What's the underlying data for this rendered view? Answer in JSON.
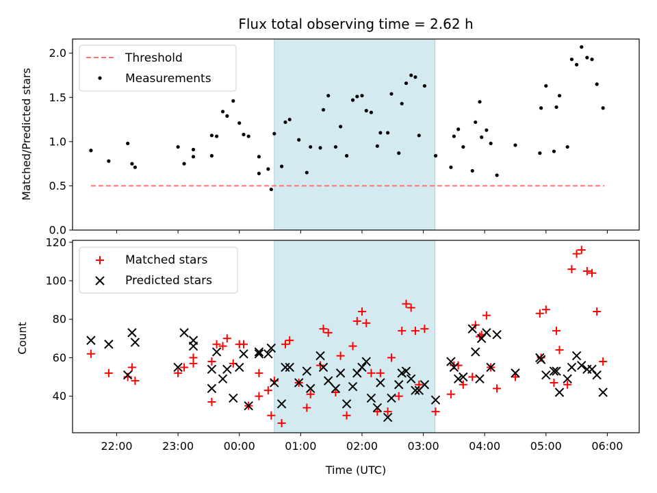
{
  "chart_data": [
    {
      "type": "scatter",
      "title": "Flux total observing time = 2.62 h",
      "ylabel": "Matched/Predicted stars",
      "xlim": [
        -2.72,
        6.52
      ],
      "ylim": [
        0,
        2.16
      ],
      "yticks": [
        "0.0",
        "0.5",
        "1.0",
        "1.5",
        "2.0"
      ],
      "legend": "top-left",
      "grid": false,
      "highlight_span": [
        0.57,
        3.19
      ],
      "highlight_color": "#d3eaf0",
      "series": [
        {
          "name": "Threshold",
          "kind": "dashed-line",
          "color": "#ff7070",
          "points": [
            [
              -2.42,
              0.5
            ],
            [
              5.95,
              0.5
            ]
          ]
        },
        {
          "name": "Measurements",
          "kind": "dot",
          "color": "#000000",
          "points": [
            [
              -2.42,
              0.9
            ],
            [
              -2.13,
              0.78
            ],
            [
              -1.82,
              0.98
            ],
            [
              -1.75,
              0.75
            ],
            [
              -1.7,
              0.71
            ],
            [
              -1.0,
              0.94
            ],
            [
              -0.9,
              0.75
            ],
            [
              -0.75,
              0.83
            ],
            [
              -0.75,
              0.91
            ],
            [
              -0.45,
              0.84
            ],
            [
              -0.45,
              1.07
            ],
            [
              -0.37,
              1.06
            ],
            [
              -0.27,
              1.34
            ],
            [
              -0.2,
              1.29
            ],
            [
              -0.1,
              1.46
            ],
            [
              0.0,
              1.21
            ],
            [
              0.07,
              1.08
            ],
            [
              0.15,
              1.06
            ],
            [
              0.32,
              0.64
            ],
            [
              0.32,
              0.83
            ],
            [
              0.47,
              0.69
            ],
            [
              0.52,
              0.46
            ],
            [
              0.57,
              1.09
            ],
            [
              0.69,
              0.72
            ],
            [
              0.75,
              1.22
            ],
            [
              0.82,
              1.25
            ],
            [
              0.97,
              1.02
            ],
            [
              1.1,
              0.65
            ],
            [
              1.16,
              0.94
            ],
            [
              1.32,
              0.93
            ],
            [
              1.37,
              1.36
            ],
            [
              1.45,
              1.52
            ],
            [
              1.57,
              0.94
            ],
            [
              1.65,
              1.17
            ],
            [
              1.75,
              0.84
            ],
            [
              1.85,
              1.47
            ],
            [
              1.92,
              1.51
            ],
            [
              2.0,
              1.52
            ],
            [
              2.07,
              1.35
            ],
            [
              2.15,
              1.33
            ],
            [
              2.25,
              0.95
            ],
            [
              2.3,
              1.1
            ],
            [
              2.42,
              1.1
            ],
            [
              2.48,
              1.54
            ],
            [
              2.6,
              0.87
            ],
            [
              2.65,
              1.43
            ],
            [
              2.72,
              1.66
            ],
            [
              2.8,
              1.75
            ],
            [
              2.87,
              1.73
            ],
            [
              2.93,
              1.07
            ],
            [
              3.02,
              1.63
            ],
            [
              3.2,
              0.84
            ],
            [
              3.45,
              0.71
            ],
            [
              3.5,
              1.06
            ],
            [
              3.57,
              1.14
            ],
            [
              3.65,
              0.94
            ],
            [
              3.8,
              0.67
            ],
            [
              3.85,
              1.22
            ],
            [
              3.92,
              1.45
            ],
            [
              3.95,
              1.05
            ],
            [
              4.03,
              1.13
            ],
            [
              4.1,
              0.98
            ],
            [
              4.2,
              0.62
            ],
            [
              4.5,
              0.96
            ],
            [
              4.9,
              0.87
            ],
            [
              4.92,
              1.38
            ],
            [
              5.0,
              1.63
            ],
            [
              5.13,
              0.89
            ],
            [
              5.17,
              1.39
            ],
            [
              5.22,
              1.52
            ],
            [
              5.35,
              0.94
            ],
            [
              5.42,
              1.93
            ],
            [
              5.5,
              1.87
            ],
            [
              5.58,
              2.07
            ],
            [
              5.67,
              1.95
            ],
            [
              5.75,
              1.93
            ],
            [
              5.83,
              1.65
            ],
            [
              5.93,
              1.38
            ]
          ]
        }
      ]
    },
    {
      "type": "scatter",
      "xlabel": "Time (UTC)",
      "ylabel": "Count",
      "xlim": [
        -2.72,
        6.52
      ],
      "ylim": [
        21,
        121
      ],
      "yticks": [
        "40",
        "60",
        "80",
        "100",
        "120"
      ],
      "xticks": [
        {
          "label": "22:00",
          "value": -2
        },
        {
          "label": "23:00",
          "value": -1
        },
        {
          "label": "00:00",
          "value": 0
        },
        {
          "label": "01:00",
          "value": 1
        },
        {
          "label": "02:00",
          "value": 2
        },
        {
          "label": "03:00",
          "value": 3
        },
        {
          "label": "04:00",
          "value": 4
        },
        {
          "label": "05:00",
          "value": 5
        },
        {
          "label": "06:00",
          "value": 6
        }
      ],
      "legend": "top-left",
      "grid": false,
      "highlight_span": [
        0.57,
        3.19
      ],
      "highlight_color": "#d3eaf0",
      "series": [
        {
          "name": "Matched stars",
          "kind": "plus",
          "color": "#ff0000",
          "points": [
            [
              -2.42,
              62
            ],
            [
              -2.13,
              52
            ],
            [
              -1.82,
              50
            ],
            [
              -1.75,
              55
            ],
            [
              -1.7,
              48
            ],
            [
              -1.0,
              52
            ],
            [
              -0.9,
              55
            ],
            [
              -0.75,
              57
            ],
            [
              -0.75,
              60
            ],
            [
              -0.45,
              37
            ],
            [
              -0.45,
              58
            ],
            [
              -0.37,
              67
            ],
            [
              -0.27,
              66
            ],
            [
              -0.2,
              70
            ],
            [
              -0.1,
              57
            ],
            [
              0.0,
              67
            ],
            [
              0.07,
              67
            ],
            [
              0.15,
              35
            ],
            [
              0.32,
              40
            ],
            [
              0.32,
              52
            ],
            [
              0.47,
              43
            ],
            [
              0.52,
              30
            ],
            [
              0.57,
              48
            ],
            [
              0.69,
              26
            ],
            [
              0.75,
              67
            ],
            [
              0.82,
              69
            ],
            [
              0.97,
              47
            ],
            [
              1.1,
              34
            ],
            [
              1.16,
              41
            ],
            [
              1.32,
              56
            ],
            [
              1.37,
              75
            ],
            [
              1.45,
              73
            ],
            [
              1.57,
              42
            ],
            [
              1.65,
              61
            ],
            [
              1.75,
              30
            ],
            [
              1.85,
              66
            ],
            [
              1.92,
              79
            ],
            [
              2.0,
              84
            ],
            [
              2.07,
              78
            ],
            [
              2.15,
              52
            ],
            [
              2.25,
              32
            ],
            [
              2.3,
              52
            ],
            [
              2.42,
              32
            ],
            [
              2.48,
              60
            ],
            [
              2.6,
              40
            ],
            [
              2.65,
              74
            ],
            [
              2.72,
              88
            ],
            [
              2.8,
              86
            ],
            [
              2.87,
              74
            ],
            [
              2.93,
              46
            ],
            [
              3.02,
              75
            ],
            [
              3.2,
              32
            ],
            [
              3.45,
              41
            ],
            [
              3.5,
              56
            ],
            [
              3.57,
              56
            ],
            [
              3.65,
              46
            ],
            [
              3.8,
              50
            ],
            [
              3.85,
              77
            ],
            [
              3.92,
              71
            ],
            [
              3.95,
              72
            ],
            [
              4.03,
              82
            ],
            [
              4.1,
              55
            ],
            [
              4.2,
              44
            ],
            [
              4.5,
              50
            ],
            [
              4.9,
              83
            ],
            [
              4.92,
              60
            ],
            [
              5.0,
              85
            ],
            [
              5.13,
              47
            ],
            [
              5.17,
              74
            ],
            [
              5.22,
              64
            ],
            [
              5.35,
              46
            ],
            [
              5.42,
              106
            ],
            [
              5.5,
              114
            ],
            [
              5.58,
              116
            ],
            [
              5.67,
              105
            ],
            [
              5.75,
              104
            ],
            [
              5.83,
              84
            ],
            [
              5.93,
              58
            ]
          ]
        },
        {
          "name": "Predicted stars",
          "kind": "x",
          "color": "#000000",
          "points": [
            [
              -2.42,
              69
            ],
            [
              -2.13,
              67
            ],
            [
              -1.82,
              51
            ],
            [
              -1.75,
              73
            ],
            [
              -1.7,
              68
            ],
            [
              -1.0,
              55
            ],
            [
              -0.9,
              73
            ],
            [
              -0.75,
              69
            ],
            [
              -0.75,
              66
            ],
            [
              -0.45,
              44
            ],
            [
              -0.45,
              54
            ],
            [
              -0.37,
              63
            ],
            [
              -0.27,
              49
            ],
            [
              -0.2,
              54
            ],
            [
              -0.1,
              39
            ],
            [
              0.0,
              55
            ],
            [
              0.07,
              62
            ],
            [
              0.15,
              35
            ],
            [
              0.32,
              63
            ],
            [
              0.32,
              62
            ],
            [
              0.47,
              62
            ],
            [
              0.52,
              65
            ],
            [
              0.57,
              47
            ],
            [
              0.69,
              36
            ],
            [
              0.75,
              55
            ],
            [
              0.82,
              55
            ],
            [
              0.97,
              47
            ],
            [
              1.1,
              53
            ],
            [
              1.16,
              44
            ],
            [
              1.32,
              61
            ],
            [
              1.37,
              55
            ],
            [
              1.45,
              48
            ],
            [
              1.57,
              44
            ],
            [
              1.65,
              52
            ],
            [
              1.75,
              36
            ],
            [
              1.85,
              45
            ],
            [
              1.92,
              52
            ],
            [
              2.0,
              55
            ],
            [
              2.07,
              58
            ],
            [
              2.15,
              39
            ],
            [
              2.25,
              34
            ],
            [
              2.3,
              47
            ],
            [
              2.42,
              29
            ],
            [
              2.48,
              39
            ],
            [
              2.6,
              46
            ],
            [
              2.65,
              52
            ],
            [
              2.72,
              53
            ],
            [
              2.8,
              49
            ],
            [
              2.87,
              43
            ],
            [
              2.93,
              43
            ],
            [
              3.02,
              46
            ],
            [
              3.2,
              38
            ],
            [
              3.45,
              58
            ],
            [
              3.5,
              55
            ],
            [
              3.57,
              49
            ],
            [
              3.65,
              50
            ],
            [
              3.8,
              75
            ],
            [
              3.85,
              63
            ],
            [
              3.92,
              49
            ],
            [
              3.95,
              70
            ],
            [
              4.03,
              73
            ],
            [
              4.1,
              55
            ],
            [
              4.2,
              72
            ],
            [
              4.5,
              52
            ],
            [
              4.9,
              60
            ],
            [
              4.92,
              59
            ],
            [
              5.0,
              51
            ],
            [
              5.13,
              53
            ],
            [
              5.17,
              53
            ],
            [
              5.22,
              42
            ],
            [
              5.35,
              49
            ],
            [
              5.42,
              55
            ],
            [
              5.5,
              61
            ],
            [
              5.58,
              56
            ],
            [
              5.67,
              54
            ],
            [
              5.75,
              54
            ],
            [
              5.83,
              51
            ],
            [
              5.93,
              42
            ]
          ]
        }
      ]
    }
  ]
}
